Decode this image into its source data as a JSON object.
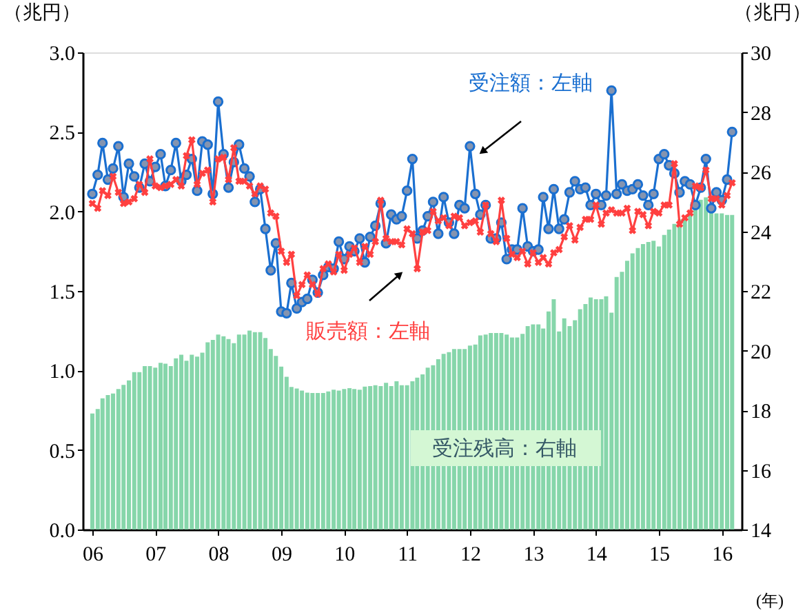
{
  "chart_data": {
    "type": "line",
    "xlabel": "(年)",
    "ylabel": "（兆円）",
    "y2label": "（兆円）",
    "x": [
      "2006-01",
      "2006-02",
      "2006-03",
      "2006-04",
      "2006-05",
      "2006-06",
      "2006-07",
      "2006-08",
      "2006-09",
      "2006-10",
      "2006-11",
      "2006-12",
      "2007-01",
      "2007-02",
      "2007-03",
      "2007-04",
      "2007-05",
      "2007-06",
      "2007-07",
      "2007-08",
      "2007-09",
      "2007-10",
      "2007-11",
      "2007-12",
      "2008-01",
      "2008-02",
      "2008-03",
      "2008-04",
      "2008-05",
      "2008-06",
      "2008-07",
      "2008-08",
      "2008-09",
      "2008-10",
      "2008-11",
      "2008-12",
      "2009-01",
      "2009-02",
      "2009-03",
      "2009-04",
      "2009-05",
      "2009-06",
      "2009-07",
      "2009-08",
      "2009-09",
      "2009-10",
      "2009-11",
      "2009-12",
      "2010-01",
      "2010-02",
      "2010-03",
      "2010-04",
      "2010-05",
      "2010-06",
      "2010-07",
      "2010-08",
      "2010-09",
      "2010-10",
      "2010-11",
      "2010-12",
      "2011-01",
      "2011-02",
      "2011-03",
      "2011-04",
      "2011-05",
      "2011-06",
      "2011-07",
      "2011-08",
      "2011-09",
      "2011-10",
      "2011-11",
      "2011-12",
      "2012-01",
      "2012-02",
      "2012-03",
      "2012-04",
      "2012-05",
      "2012-06",
      "2012-07",
      "2012-08",
      "2012-09",
      "2012-10",
      "2012-11",
      "2012-12",
      "2013-01",
      "2013-02",
      "2013-03",
      "2013-04",
      "2013-05",
      "2013-06",
      "2013-07",
      "2013-08",
      "2013-09",
      "2013-10",
      "2013-11",
      "2013-12",
      "2014-01",
      "2014-02",
      "2014-03",
      "2014-04",
      "2014-05",
      "2014-06",
      "2014-07",
      "2014-08",
      "2014-09",
      "2014-10",
      "2014-11",
      "2014-12",
      "2015-01",
      "2015-02",
      "2015-03",
      "2015-04",
      "2015-05",
      "2015-06",
      "2015-07",
      "2015-08",
      "2015-09",
      "2015-10",
      "2015-11",
      "2015-12",
      "2016-01",
      "2016-02",
      "2016-03"
    ],
    "xlim": [
      "2005-12-16",
      "2016-03-16"
    ],
    "xticks": [
      {
        "value": "2006-01",
        "label": "06"
      },
      {
        "value": "2007-01",
        "label": "07"
      },
      {
        "value": "2008-01",
        "label": "08"
      },
      {
        "value": "2009-01",
        "label": "09"
      },
      {
        "value": "2010-01",
        "label": "10"
      },
      {
        "value": "2011-01",
        "label": "11"
      },
      {
        "value": "2012-01",
        "label": "12"
      },
      {
        "value": "2013-01",
        "label": "13"
      },
      {
        "value": "2014-01",
        "label": "14"
      },
      {
        "value": "2015-01",
        "label": "15"
      },
      {
        "value": "2016-01",
        "label": "16"
      }
    ],
    "ylim": [
      0,
      3.0
    ],
    "yticks": [
      {
        "value": 0,
        "label": "0.0"
      },
      {
        "value": 0.5,
        "label": "0.5"
      },
      {
        "value": 1,
        "label": "1.0"
      },
      {
        "value": 1.5,
        "label": "1.5"
      },
      {
        "value": 2,
        "label": "2.0"
      },
      {
        "value": 2.5,
        "label": "2.5"
      },
      {
        "value": 3,
        "label": "3.0"
      }
    ],
    "y2lim": [
      14,
      30
    ],
    "y2ticks": [
      14,
      16,
      18,
      20,
      22,
      24,
      26,
      28,
      30
    ],
    "grid": false,
    "series": [
      {
        "name": "受注残高：右軸",
        "type": "bar",
        "axis": "y2",
        "color": "#86d6aa",
        "values": [
          17.89,
          18.04,
          18.4,
          18.51,
          18.56,
          18.71,
          18.85,
          19.0,
          19.28,
          19.28,
          19.48,
          19.48,
          19.43,
          19.59,
          19.56,
          19.48,
          19.74,
          19.86,
          19.66,
          19.86,
          19.8,
          19.93,
          20.28,
          20.36,
          20.54,
          20.48,
          20.39,
          20.25,
          20.54,
          20.54,
          20.67,
          20.62,
          20.62,
          20.42,
          20.05,
          19.82,
          19.46,
          19.12,
          18.78,
          18.73,
          18.66,
          18.59,
          18.58,
          18.58,
          18.58,
          18.63,
          18.69,
          18.66,
          18.71,
          18.74,
          18.71,
          18.69,
          18.79,
          18.81,
          18.84,
          18.81,
          18.92,
          18.81,
          18.97,
          18.84,
          18.84,
          18.97,
          19.09,
          19.2,
          19.43,
          19.51,
          19.71,
          19.89,
          19.95,
          20.05,
          20.05,
          20.05,
          20.17,
          20.2,
          20.51,
          20.54,
          20.59,
          20.59,
          20.59,
          20.54,
          20.44,
          20.44,
          20.56,
          20.82,
          20.88,
          20.88,
          20.74,
          21.31,
          21.72,
          20.64,
          21.08,
          20.82,
          21.02,
          21.39,
          21.56,
          21.78,
          21.72,
          21.72,
          21.82,
          21.27,
          22.47,
          22.64,
          23.01,
          23.26,
          23.44,
          23.57,
          23.64,
          23.68,
          23.49,
          23.88,
          24.06,
          24.25,
          24.4,
          24.49,
          24.65,
          24.8,
          25.06,
          25.14,
          24.67,
          24.6,
          24.6,
          24.55,
          24.55
        ]
      },
      {
        "name": "受注額：左軸",
        "color": "#1a6fd0",
        "marker": "circle",
        "values": [
          2.11,
          2.23,
          2.43,
          2.2,
          2.27,
          2.41,
          2.09,
          2.3,
          2.22,
          2.15,
          2.3,
          2.19,
          2.28,
          2.36,
          2.16,
          2.26,
          2.43,
          2.19,
          2.23,
          2.33,
          2.13,
          2.44,
          2.42,
          2.11,
          2.69,
          2.36,
          2.15,
          2.31,
          2.42,
          2.27,
          2.22,
          2.06,
          2.14,
          1.89,
          1.63,
          1.8,
          1.37,
          1.36,
          1.55,
          1.39,
          1.43,
          1.45,
          1.57,
          1.49,
          1.6,
          1.65,
          1.64,
          1.81,
          1.7,
          1.78,
          1.75,
          1.83,
          1.68,
          1.84,
          1.91,
          2.05,
          1.8,
          1.98,
          1.95,
          1.97,
          2.13,
          2.33,
          1.83,
          1.88,
          1.97,
          2.06,
          1.86,
          2.09,
          1.93,
          1.86,
          2.04,
          2.02,
          2.41,
          2.11,
          1.98,
          2.04,
          1.83,
          1.83,
          1.93,
          1.7,
          1.76,
          1.76,
          2.02,
          1.78,
          1.75,
          1.76,
          2.09,
          1.89,
          2.14,
          1.89,
          1.95,
          2.12,
          2.19,
          2.14,
          2.15,
          2.04,
          2.11,
          2.04,
          2.1,
          2.76,
          2.11,
          2.17,
          2.13,
          2.14,
          2.17,
          2.1,
          2.04,
          2.11,
          2.33,
          2.36,
          2.29,
          2.24,
          2.12,
          2.19,
          2.17,
          2.04,
          2.15,
          2.33,
          2.02,
          2.12,
          2.07,
          2.2,
          2.5
        ]
      },
      {
        "name": "販売額：左軸",
        "color": "#ff4040",
        "marker": "cross",
        "values": [
          2.05,
          2.02,
          2.13,
          2.1,
          2.22,
          2.12,
          2.05,
          2.06,
          2.08,
          2.17,
          2.12,
          2.33,
          2.16,
          2.15,
          2.16,
          2.17,
          2.2,
          2.16,
          2.35,
          2.45,
          2.17,
          2.24,
          2.26,
          2.06,
          2.33,
          2.34,
          2.2,
          2.4,
          2.19,
          2.19,
          2.16,
          2.11,
          2.16,
          2.14,
          1.99,
          1.97,
          1.75,
          1.68,
          1.73,
          1.47,
          1.54,
          1.6,
          1.54,
          1.48,
          1.64,
          1.67,
          1.62,
          1.73,
          1.63,
          1.73,
          1.77,
          1.68,
          1.78,
          1.73,
          1.81,
          2.07,
          1.83,
          1.81,
          1.81,
          1.79,
          1.89,
          1.86,
          1.64,
          1.87,
          1.88,
          2.0,
          1.94,
          1.96,
          1.91,
          1.97,
          1.96,
          1.91,
          1.93,
          1.94,
          1.87,
          2.04,
          1.86,
          1.81,
          2.07,
          1.83,
          1.73,
          1.71,
          1.75,
          1.67,
          1.74,
          1.68,
          1.71,
          1.67,
          1.74,
          1.76,
          1.84,
          1.91,
          1.82,
          1.9,
          1.95,
          1.95,
          2.04,
          1.92,
          1.99,
          2.01,
          1.99,
          1.99,
          2.02,
          1.88,
          2.0,
          1.98,
          1.91,
          2.0,
          1.99,
          2.04,
          2.04,
          2.3,
          1.92,
          1.96,
          1.99,
          2.16,
          2.15,
          2.26,
          2.08,
          2.08,
          2.04,
          2.1,
          2.18
        ]
      }
    ]
  }
}
